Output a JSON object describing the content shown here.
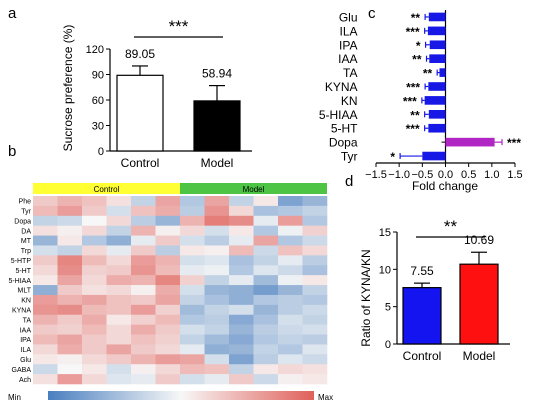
{
  "panels": {
    "a": {
      "letter": "a",
      "chart_data": {
        "type": "bar",
        "categories": [
          "Control",
          "Model"
        ],
        "values": [
          89.05,
          58.94
        ],
        "errors": [
          11,
          18
        ],
        "value_labels": [
          "89.05",
          "58.94"
        ],
        "ylabel": "Sucrose preference (%)",
        "ylim": [
          0,
          120
        ],
        "yticks": [
          0,
          30,
          60,
          90,
          120
        ],
        "significance": "***",
        "colors": [
          "#ffffff",
          "#000000"
        ]
      }
    },
    "b": {
      "letter": "b",
      "group_labels": [
        "Control",
        "Model"
      ],
      "group_colors": [
        "#ffff33",
        "#4dc444"
      ],
      "min_label": "Min",
      "max_label": "Max",
      "colormap": [
        "#4a7fbf",
        "#f7f7f7",
        "#e0605a"
      ],
      "chart_data": {
        "type": "heatmap",
        "rows": [
          "Phe",
          "Tyr",
          "Dopa",
          "DA",
          "MT",
          "Trp",
          "5-HTP",
          "5-HT",
          "5-HIAA",
          "MLT",
          "KN",
          "KYNA",
          "TA",
          "IAA",
          "IPA",
          "ILA",
          "Glu",
          "GABA",
          "Ach"
        ],
        "columns": 12,
        "values": [
          [
            0.3,
            0.45,
            0.35,
            0.15,
            -0.3,
            0.55,
            -0.4,
            0.55,
            -0.3,
            0.1,
            -0.7,
            -0.55
          ],
          [
            0.4,
            0.6,
            0.3,
            -0.2,
            0.35,
            0.5,
            -0.35,
            0.65,
            0.2,
            -0.45,
            -0.4,
            -0.3
          ],
          [
            -0.3,
            -0.25,
            0.0,
            0.2,
            -0.35,
            -0.55,
            0.45,
            0.8,
            0.7,
            -0.1,
            0.6,
            -0.4
          ],
          [
            0.15,
            0.05,
            0.2,
            -0.3,
            0.45,
            0.05,
            0.2,
            -0.2,
            0.1,
            -0.4,
            -0.05,
            0.25
          ],
          [
            -0.55,
            0.1,
            -0.4,
            -0.6,
            -0.1,
            0.3,
            -0.2,
            -0.35,
            -0.1,
            0.55,
            -0.4,
            -0.25
          ],
          [
            -0.2,
            -0.3,
            0.2,
            -0.1,
            0.3,
            -0.35,
            0.1,
            0.05,
            0.4,
            -0.25,
            0.35,
            0.2
          ],
          [
            0.3,
            0.75,
            0.4,
            0.2,
            0.6,
            0.45,
            -0.2,
            -0.15,
            -0.45,
            -0.3,
            -0.1,
            -0.35
          ],
          [
            0.2,
            0.7,
            0.25,
            0.3,
            0.65,
            0.4,
            -0.1,
            -0.05,
            -0.4,
            -0.15,
            -0.25,
            -0.45
          ],
          [
            0.1,
            0.55,
            0.2,
            0.5,
            0.45,
            0.75,
            0.25,
            -0.3,
            -0.1,
            -0.5,
            -0.05,
            0.1
          ],
          [
            -0.6,
            0.3,
            0.15,
            0.2,
            0.05,
            0.5,
            -0.2,
            -0.55,
            -0.6,
            -0.75,
            -0.55,
            -0.3
          ],
          [
            0.6,
            0.45,
            0.55,
            0.35,
            0.3,
            0.55,
            -0.3,
            -0.45,
            -0.6,
            -0.4,
            -0.35,
            -0.4
          ],
          [
            0.65,
            0.7,
            0.4,
            0.35,
            0.6,
            0.25,
            -0.5,
            -0.3,
            -0.2,
            -0.55,
            -0.35,
            -0.25
          ],
          [
            0.45,
            0.3,
            0.5,
            0.1,
            0.25,
            0.4,
            -0.4,
            -0.35,
            -0.65,
            -0.45,
            -0.2,
            -0.3
          ],
          [
            0.3,
            0.25,
            0.4,
            0.2,
            0.5,
            0.3,
            -0.2,
            -0.3,
            -0.55,
            -0.35,
            -0.25,
            -0.2
          ],
          [
            0.4,
            0.55,
            0.3,
            0.2,
            0.35,
            0.25,
            -0.3,
            -0.5,
            -0.65,
            -0.4,
            -0.3,
            -0.35
          ],
          [
            0.2,
            0.5,
            0.3,
            0.55,
            0.3,
            0.2,
            -0.1,
            -0.6,
            -0.55,
            -0.3,
            -0.4,
            -0.15
          ],
          [
            0.1,
            0.05,
            0.2,
            0.3,
            0.45,
            0.6,
            0.55,
            -0.2,
            -0.7,
            -0.35,
            -0.15,
            -0.25
          ],
          [
            -0.25,
            0.0,
            0.1,
            -0.2,
            0.05,
            0.2,
            0.4,
            0.35,
            -0.3,
            0.1,
            0.2,
            0.15
          ],
          [
            0.15,
            0.6,
            0.2,
            -0.15,
            -0.1,
            0.3,
            -0.2,
            -0.1,
            0.3,
            -0.25,
            0.05,
            0.1
          ]
        ]
      }
    },
    "c": {
      "letter": "c",
      "chart_data": {
        "type": "bar",
        "orientation": "horizontal",
        "categories": [
          "Glu",
          "ILA",
          "IPA",
          "IAA",
          "TA",
          "KYNA",
          "KN",
          "5-HIAA",
          "5-HT",
          "Dopa",
          "Tyr"
        ],
        "values": [
          -0.36,
          -0.38,
          -0.34,
          -0.35,
          -0.13,
          -0.37,
          -0.45,
          -0.36,
          -0.37,
          1.06,
          -0.5
        ],
        "errors": [
          0.08,
          0.07,
          0.09,
          0.06,
          0.05,
          0.07,
          0.06,
          0.09,
          0.08,
          0.16,
          0.48
        ],
        "significance": [
          "**",
          "***",
          "*",
          "**",
          "**",
          "***",
          "***",
          "**",
          "***",
          "***",
          "*"
        ],
        "colors": [
          "#1818e6",
          "#1818e6",
          "#1818e6",
          "#1818e6",
          "#1818e6",
          "#1818e6",
          "#1818e6",
          "#1818e6",
          "#1818e6",
          "#b025c4",
          "#1818e6"
        ],
        "xlabel": "Fold change",
        "xlim": [
          -1.5,
          1.5
        ],
        "xticks": [
          -1.5,
          -1.0,
          -0.5,
          0.0,
          0.5,
          1.0,
          1.5
        ],
        "xtick_labels": [
          "−1.5",
          "−1.0",
          "−0.5",
          "0.0",
          "0.5",
          "1.0",
          "1.5"
        ]
      }
    },
    "d": {
      "letter": "d",
      "chart_data": {
        "type": "bar",
        "categories": [
          "Control",
          "Model"
        ],
        "values": [
          7.55,
          10.69
        ],
        "errors": [
          0.6,
          1.6
        ],
        "value_labels": [
          "7.55",
          "10.69"
        ],
        "ylabel": "Ratio of KYNA/KN",
        "ylim": [
          0,
          15
        ],
        "yticks": [
          0,
          5,
          10,
          15
        ],
        "significance": "**",
        "colors": [
          "#1414f0",
          "#ff1010"
        ]
      }
    }
  }
}
